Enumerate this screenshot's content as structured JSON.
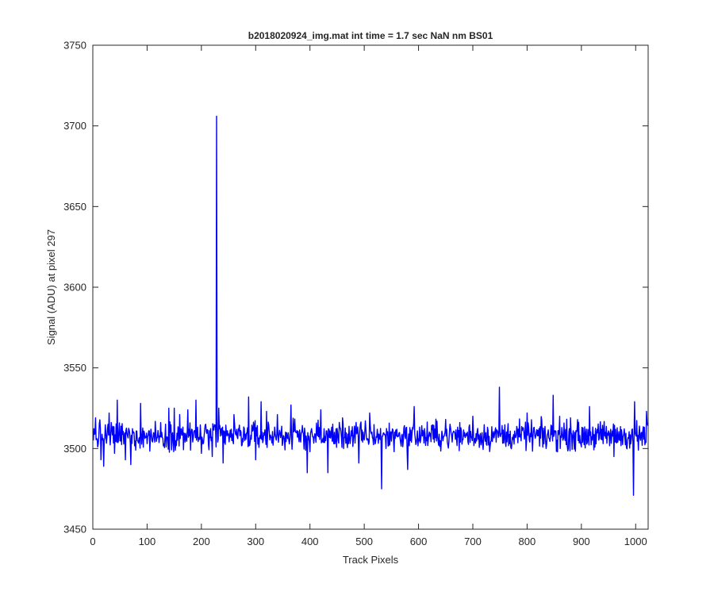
{
  "chart_data": {
    "type": "line",
    "title": "b2018020924_img.mat int time = 1.7 sec  NaN nm BS01",
    "xlabel": "Track Pixels",
    "ylabel": "Signal (ADU) at pixel 297",
    "xlim": [
      0,
      1023
    ],
    "ylim": [
      3450,
      3750
    ],
    "x_ticks": [
      0,
      100,
      200,
      300,
      400,
      500,
      600,
      700,
      800,
      900,
      1000
    ],
    "y_ticks": [
      3450,
      3500,
      3550,
      3600,
      3650,
      3700,
      3750
    ],
    "grid": false,
    "legend": "none",
    "series": [
      {
        "color": "#0000ff",
        "baseline": 3508,
        "noise_amplitude": 8,
        "x_range": [
          1,
          1023
        ],
        "points": [
          [
            1,
            3505
          ],
          [
            5,
            3519
          ],
          [
            10,
            3503
          ],
          [
            15,
            3493
          ],
          [
            20,
            3489
          ],
          [
            30,
            3522
          ],
          [
            40,
            3497
          ],
          [
            45,
            3530
          ],
          [
            60,
            3493
          ],
          [
            70,
            3490
          ],
          [
            88,
            3528
          ],
          [
            100,
            3503
          ],
          [
            140,
            3525
          ],
          [
            150,
            3525
          ],
          [
            160,
            3521
          ],
          [
            175,
            3524
          ],
          [
            180,
            3499
          ],
          [
            190,
            3530
          ],
          [
            200,
            3497
          ],
          [
            220,
            3495
          ],
          [
            227,
            3501
          ],
          [
            228,
            3706
          ],
          [
            230,
            3504
          ],
          [
            232,
            3525
          ],
          [
            240,
            3491
          ],
          [
            260,
            3521
          ],
          [
            280,
            3505
          ],
          [
            287,
            3532
          ],
          [
            300,
            3493
          ],
          [
            310,
            3529
          ],
          [
            320,
            3523
          ],
          [
            340,
            3521
          ],
          [
            365,
            3527
          ],
          [
            395,
            3485
          ],
          [
            420,
            3524
          ],
          [
            433,
            3485
          ],
          [
            460,
            3519
          ],
          [
            490,
            3491
          ],
          [
            510,
            3522
          ],
          [
            532,
            3475
          ],
          [
            540,
            3500
          ],
          [
            560,
            3512
          ],
          [
            580,
            3487
          ],
          [
            592,
            3526
          ],
          [
            600,
            3506
          ],
          [
            650,
            3518
          ],
          [
            670,
            3506
          ],
          [
            700,
            3520
          ],
          [
            749,
            3538
          ],
          [
            760,
            3504
          ],
          [
            800,
            3522
          ],
          [
            835,
            3500
          ],
          [
            848,
            3533
          ],
          [
            860,
            3520
          ],
          [
            870,
            3505
          ],
          [
            880,
            3519
          ],
          [
            900,
            3501
          ],
          [
            915,
            3526
          ],
          [
            940,
            3503
          ],
          [
            960,
            3495
          ],
          [
            985,
            3505
          ],
          [
            996,
            3471
          ],
          [
            998,
            3529
          ],
          [
            1005,
            3499
          ],
          [
            1020,
            3523
          ]
        ]
      }
    ]
  }
}
